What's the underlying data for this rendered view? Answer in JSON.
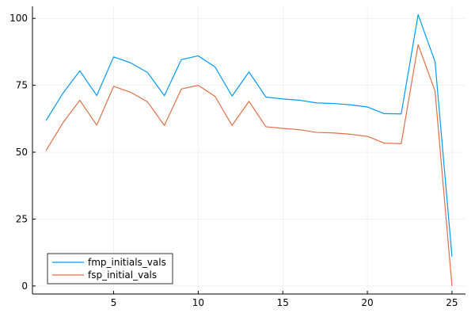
{
  "chart_data": {
    "type": "line",
    "title": "",
    "xlabel": "",
    "ylabel": "",
    "xlim": [
      0.2,
      25.8
    ],
    "ylim": [
      -3.0,
      104.5
    ],
    "x_ticks": [
      5,
      10,
      15,
      20,
      25
    ],
    "y_ticks": [
      0,
      25,
      50,
      75,
      100
    ],
    "x_tick_labels": [
      "5",
      "10",
      "15",
      "20",
      "25"
    ],
    "y_tick_labels": [
      "0",
      "25",
      "50",
      "75",
      "100"
    ],
    "grid": true,
    "legend_position": "bottom-left",
    "x": [
      1,
      2,
      3,
      4,
      5,
      6,
      7,
      8,
      9,
      10,
      11,
      12,
      13,
      14,
      15,
      16,
      17,
      18,
      19,
      20,
      21,
      22,
      23,
      24,
      25
    ],
    "series": [
      {
        "name": "fmp_initials_vals",
        "color": "#009AF9",
        "values": [
          61.8,
          72.0,
          80.4,
          71.2,
          85.6,
          83.4,
          79.8,
          71.1,
          84.6,
          86.0,
          81.8,
          71.0,
          80.0,
          70.6,
          69.9,
          69.4,
          68.4,
          68.2,
          67.7,
          66.9,
          64.4,
          64.3,
          101.4,
          83.8,
          11.0
        ]
      },
      {
        "name": "fsp_initial_vals",
        "color": "#E26F46",
        "values": [
          50.6,
          61.0,
          69.4,
          60.1,
          74.6,
          72.4,
          68.8,
          60.0,
          73.6,
          75.0,
          70.8,
          60.0,
          69.0,
          59.5,
          58.9,
          58.4,
          57.4,
          57.2,
          56.7,
          55.9,
          53.4,
          53.2,
          90.2,
          72.8,
          0.0
        ]
      }
    ]
  }
}
